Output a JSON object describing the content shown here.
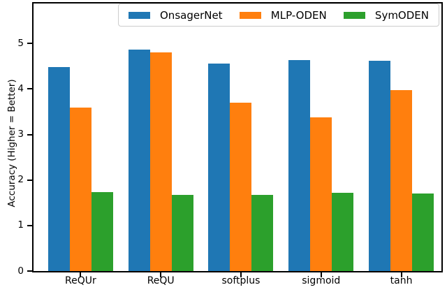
{
  "chart_data": {
    "type": "bar",
    "title": "",
    "categories": [
      "ReQUr",
      "ReQU",
      "softplus",
      "sigmoid",
      "tanh"
    ],
    "series": [
      {
        "name": "OnsagerNet",
        "color": "#1f77b4",
        "values": [
          4.49,
          4.86,
          4.56,
          4.63,
          4.62
        ]
      },
      {
        "name": "MLP-ODEN",
        "color": "#ff7f0e",
        "values": [
          3.59,
          4.81,
          3.7,
          3.38,
          3.98
        ]
      },
      {
        "name": "SymODEN",
        "color": "#2ca02c",
        "values": [
          1.74,
          1.67,
          1.68,
          1.72,
          1.71
        ]
      }
    ],
    "xlabel": "",
    "ylabel": "Accuracy (Higher = Better)",
    "yticks": [
      0,
      1,
      2,
      3,
      4,
      5
    ],
    "ylim": [
      0,
      5.88
    ],
    "grid": false,
    "legend": {
      "position": "top-center-inside",
      "entries": [
        "OnsagerNet",
        "MLP-ODEN",
        "SymODEN"
      ]
    },
    "axis_color": "#000000",
    "background_color": "#ffffff"
  }
}
